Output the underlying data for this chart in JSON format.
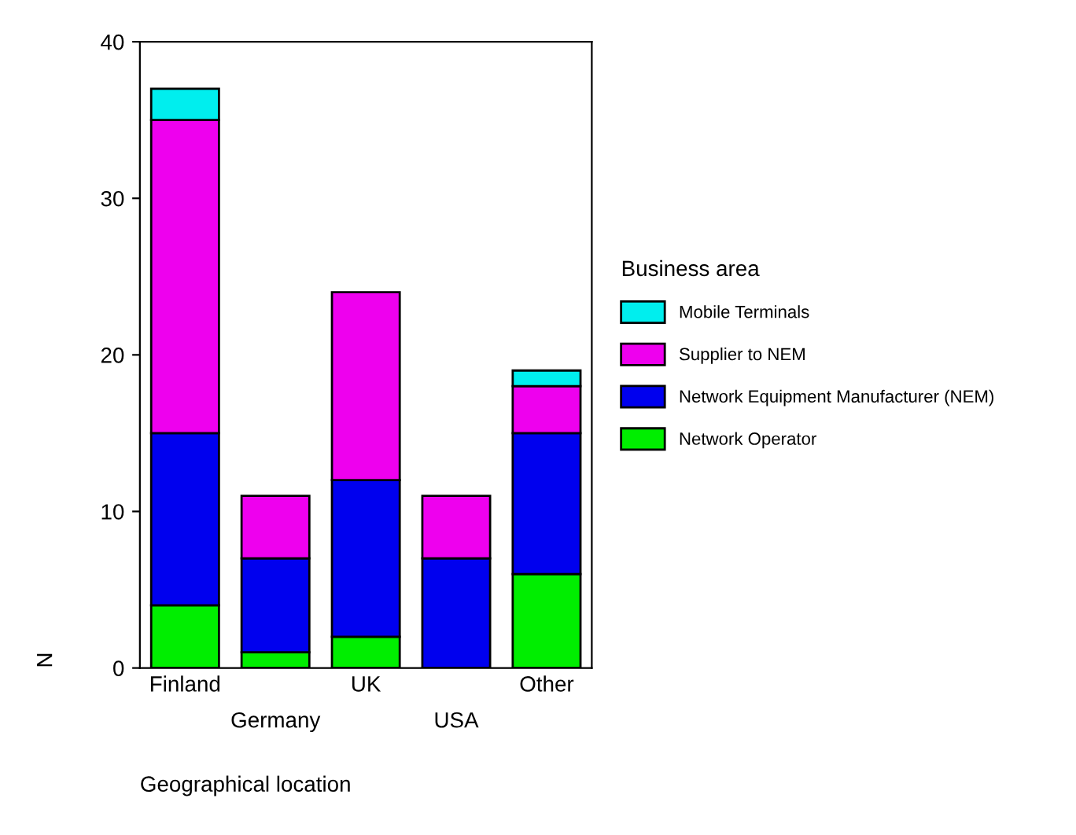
{
  "chart_data": {
    "type": "bar",
    "stacked": true,
    "xlabel": "Geographical location",
    "ylabel": "N",
    "legend_title": "Business area",
    "legend": "right",
    "grid": false,
    "categories": [
      "Finland",
      "Germany",
      "UK",
      "USA",
      "Other"
    ],
    "ylim": [
      0,
      40
    ],
    "yticks": [
      0,
      10,
      20,
      30,
      40
    ],
    "series": [
      {
        "name": "Network Operator",
        "color": "#00ee00",
        "values": [
          4,
          1,
          2,
          null,
          6
        ]
      },
      {
        "name": "Network Equipment Manufacturer (NEM)",
        "color": "#0000ee",
        "values": [
          11,
          6,
          10,
          7,
          9
        ]
      },
      {
        "name": "Supplier to NEM",
        "color": "#ee00ee",
        "values": [
          20,
          4,
          12,
          4,
          3
        ]
      },
      {
        "name": "Mobile Terminals",
        "color": "#00eeee",
        "values": [
          2,
          null,
          null,
          null,
          1
        ]
      }
    ]
  }
}
